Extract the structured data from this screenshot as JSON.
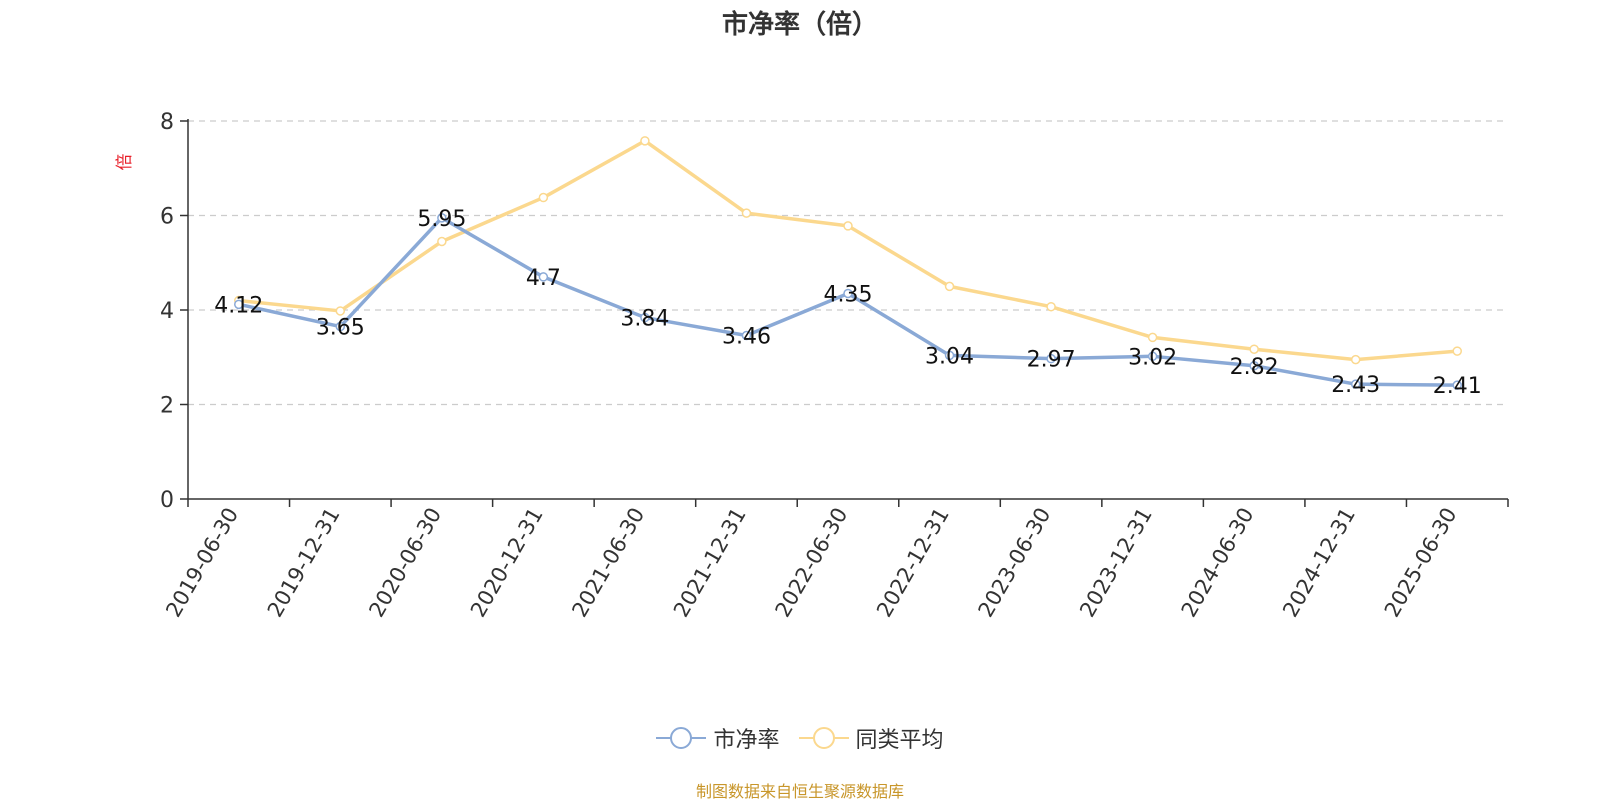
{
  "title": "市净率（倍）",
  "source": "制图数据来自恒生聚源数据库",
  "legend": [
    {
      "label": "市净率",
      "color": "#8aa9d6"
    },
    {
      "label": "同类平均",
      "color": "#fbd88e"
    }
  ],
  "chart_data": {
    "type": "line",
    "title": "市净率（倍）",
    "ylabel": "倍",
    "ylim": [
      0,
      8
    ],
    "yticks": [
      0,
      2,
      4,
      6,
      8
    ],
    "grid": true,
    "legend_position": "bottom",
    "categories": [
      "2019-06-30",
      "2019-12-31",
      "2020-06-30",
      "2020-12-31",
      "2021-06-30",
      "2021-12-31",
      "2022-06-30",
      "2022-12-31",
      "2023-06-30",
      "2023-12-31",
      "2024-06-30",
      "2024-12-31",
      "2025-06-30"
    ],
    "series": [
      {
        "name": "市净率",
        "color": "#8aa9d6",
        "values": [
          4.12,
          3.65,
          5.95,
          4.7,
          3.84,
          3.46,
          4.35,
          3.04,
          2.97,
          3.02,
          2.82,
          2.43,
          2.41
        ],
        "labels": [
          "4.12",
          "3.65",
          "5.95",
          "4.7",
          "3.84",
          "3.46",
          "4.35",
          "3.04",
          "2.97",
          "3.02",
          "2.82",
          "2.43",
          "2.41"
        ]
      },
      {
        "name": "同类平均",
        "color": "#fbd88e",
        "values": [
          4.2,
          3.98,
          5.45,
          6.38,
          7.58,
          6.05,
          5.78,
          4.5,
          4.07,
          3.42,
          3.17,
          2.95,
          3.13
        ]
      }
    ]
  }
}
